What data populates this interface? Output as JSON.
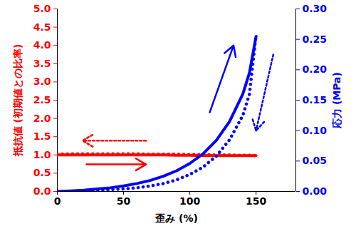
{
  "chart_data": {
    "type": "line",
    "x_label": "歪み (%)",
    "y_label": "抵抗値 (初期値との比率)",
    "y2_label": "応力 (MPa)",
    "xlim": [
      0,
      180
    ],
    "xticks": [
      0,
      50,
      100,
      150
    ],
    "ylim": [
      0,
      5
    ],
    "yticks": [
      0,
      0.5,
      1,
      1.5,
      2,
      2.5,
      3,
      3.5,
      4,
      4.5,
      5
    ],
    "y2lim": [
      0,
      0.3
    ],
    "y2ticks": [
      0,
      0.05,
      0.1,
      0.15,
      0.2,
      0.25,
      0.3
    ],
    "x": [
      0,
      10,
      20,
      30,
      40,
      50,
      60,
      70,
      80,
      90,
      100,
      110,
      120,
      130,
      140,
      145,
      150
    ],
    "series": [
      {
        "color": "#ff0000",
        "line_style": "solid",
        "values": [
          1.0,
          1.0,
          1.0,
          1.0,
          1.0,
          1.0,
          1.0,
          1.0,
          1.0,
          0.99,
          0.99,
          0.98,
          0.98,
          0.98,
          0.98,
          0.98,
          0.98
        ]
      },
      {
        "color": "#ff0000",
        "line_style": "dotted",
        "values": [
          1.02,
          1.03,
          1.03,
          1.03,
          1.03,
          1.03,
          1.03,
          1.02,
          1.02,
          1.02,
          1.01,
          1.01,
          1.0,
          1.0,
          0.99,
          0.99,
          0.98
        ]
      },
      {
        "color": "#0000ff",
        "line_style": "solid",
        "axis": "y2",
        "values": [
          0,
          0.001,
          0.002,
          0.004,
          0.006,
          0.009,
          0.013,
          0.018,
          0.025,
          0.034,
          0.046,
          0.062,
          0.084,
          0.115,
          0.16,
          0.195,
          0.255
        ]
      },
      {
        "color": "#0000ff",
        "line_style": "dotted",
        "axis": "y2",
        "values": [
          0,
          0,
          0.001,
          0.002,
          0.003,
          0.004,
          0.006,
          0.009,
          0.013,
          0.019,
          0.028,
          0.04,
          0.058,
          0.085,
          0.125,
          0.16,
          0.257
        ]
      }
    ],
    "arrows": [
      {
        "x1": 67,
        "y1": 1.39,
        "x2": 19,
        "y2": 1.39,
        "color": "#ff0000",
        "line_style": "dotted"
      },
      {
        "x1": 22,
        "y1": 0.74,
        "x2": 67,
        "y2": 0.74,
        "color": "#ff0000",
        "line_style": "solid"
      },
      {
        "x1": 115,
        "y1": 0.13,
        "x2": 133,
        "y2": 0.24,
        "color": "#0000ff",
        "line_style": "solid",
        "axis": "y2"
      },
      {
        "x1": 163,
        "y1": 0.225,
        "x2": 150,
        "y2": 0.1,
        "color": "#0000ff",
        "line_style": "dotted",
        "axis": "y2"
      }
    ]
  }
}
